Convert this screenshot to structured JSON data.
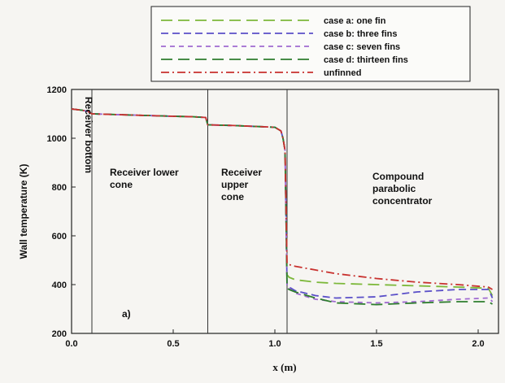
{
  "chart_data": {
    "type": "line",
    "title": "",
    "xlabel": "x (m)",
    "ylabel": "Wall temperature (K)",
    "xlim": [
      0.0,
      2.1
    ],
    "ylim": [
      200,
      1200
    ],
    "xticks": [
      "0.0",
      "0.5",
      "1.0",
      "1.5",
      "2.0"
    ],
    "xtick_values": [
      0.0,
      0.5,
      1.0,
      1.5,
      2.0
    ],
    "yticks": [
      "200",
      "400",
      "600",
      "800",
      "1000",
      "1200"
    ],
    "ytick_values": [
      200,
      400,
      600,
      800,
      1000,
      1200
    ],
    "grid": false,
    "legend_position": "top",
    "annotation": "a)",
    "regions": [
      {
        "label": "Receiver bottom",
        "boundary_x": 0.1
      },
      {
        "label": "Receiver lower cone",
        "boundary_x": 0.67
      },
      {
        "label": "Receiver upper cone",
        "boundary_x": 1.06
      },
      {
        "label": "Compound parabolic concentrator"
      }
    ],
    "series": [
      {
        "name": "case a: one fin",
        "color": "#7cb83a",
        "dash": "long",
        "x": [
          0.0,
          0.05,
          0.08,
          0.1,
          0.3,
          0.5,
          0.6,
          0.66,
          0.67,
          0.8,
          1.0,
          1.03,
          1.04,
          1.05,
          1.06,
          1.07,
          1.1,
          1.2,
          1.3,
          1.5,
          1.7,
          1.9,
          2.05,
          2.06,
          2.07
        ],
        "y": [
          1120,
          1115,
          1110,
          1100,
          1095,
          1090,
          1088,
          1085,
          1055,
          1052,
          1045,
          1030,
          1000,
          950,
          440,
          430,
          420,
          410,
          405,
          400,
          395,
          390,
          385,
          370,
          355
        ]
      },
      {
        "name": "case b: three fins",
        "color": "#5a4fc8",
        "dash": "medium",
        "x": [
          0.0,
          0.05,
          0.08,
          0.1,
          0.3,
          0.5,
          0.6,
          0.66,
          0.67,
          0.8,
          1.0,
          1.03,
          1.04,
          1.05,
          1.06,
          1.07,
          1.1,
          1.2,
          1.3,
          1.5,
          1.7,
          1.9,
          2.05,
          2.06,
          2.07
        ],
        "y": [
          1120,
          1115,
          1110,
          1100,
          1095,
          1090,
          1088,
          1085,
          1055,
          1052,
          1045,
          1030,
          1000,
          950,
          395,
          390,
          375,
          355,
          345,
          350,
          370,
          380,
          380,
          365,
          345
        ]
      },
      {
        "name": "case c: seven fins",
        "color": "#a06ad0",
        "dash": "short",
        "x": [
          0.0,
          0.05,
          0.08,
          0.1,
          0.3,
          0.5,
          0.6,
          0.66,
          0.67,
          0.8,
          1.0,
          1.03,
          1.04,
          1.05,
          1.06,
          1.07,
          1.1,
          1.2,
          1.3,
          1.5,
          1.7,
          1.9,
          2.05,
          2.06,
          2.07
        ],
        "y": [
          1120,
          1115,
          1110,
          1100,
          1095,
          1090,
          1088,
          1085,
          1055,
          1052,
          1045,
          1030,
          1000,
          950,
          390,
          385,
          365,
          340,
          330,
          325,
          330,
          340,
          345,
          340,
          330
        ]
      },
      {
        "name": "case d: thirteen fins",
        "color": "#2e7d2e",
        "dash": "long",
        "x": [
          0.0,
          0.05,
          0.08,
          0.1,
          0.3,
          0.5,
          0.6,
          0.66,
          0.67,
          0.8,
          1.0,
          1.03,
          1.04,
          1.05,
          1.06,
          1.07,
          1.1,
          1.2,
          1.3,
          1.5,
          1.7,
          1.9,
          2.05,
          2.06,
          2.07
        ],
        "y": [
          1120,
          1115,
          1110,
          1100,
          1095,
          1090,
          1088,
          1085,
          1055,
          1052,
          1045,
          1030,
          1000,
          950,
          385,
          380,
          370,
          345,
          325,
          318,
          325,
          330,
          330,
          325,
          320
        ]
      },
      {
        "name": "unfinned",
        "color": "#c8312e",
        "dash": "dashdot",
        "x": [
          0.0,
          0.05,
          0.08,
          0.1,
          0.3,
          0.5,
          0.6,
          0.66,
          0.67,
          0.8,
          1.0,
          1.03,
          1.04,
          1.05,
          1.06,
          1.07,
          1.1,
          1.2,
          1.3,
          1.5,
          1.7,
          1.9,
          2.05,
          2.06,
          2.07
        ],
        "y": [
          1120,
          1115,
          1110,
          1100,
          1095,
          1090,
          1088,
          1085,
          1055,
          1052,
          1045,
          1030,
          1000,
          950,
          485,
          482,
          475,
          460,
          445,
          425,
          410,
          400,
          390,
          385,
          380
        ]
      }
    ]
  }
}
